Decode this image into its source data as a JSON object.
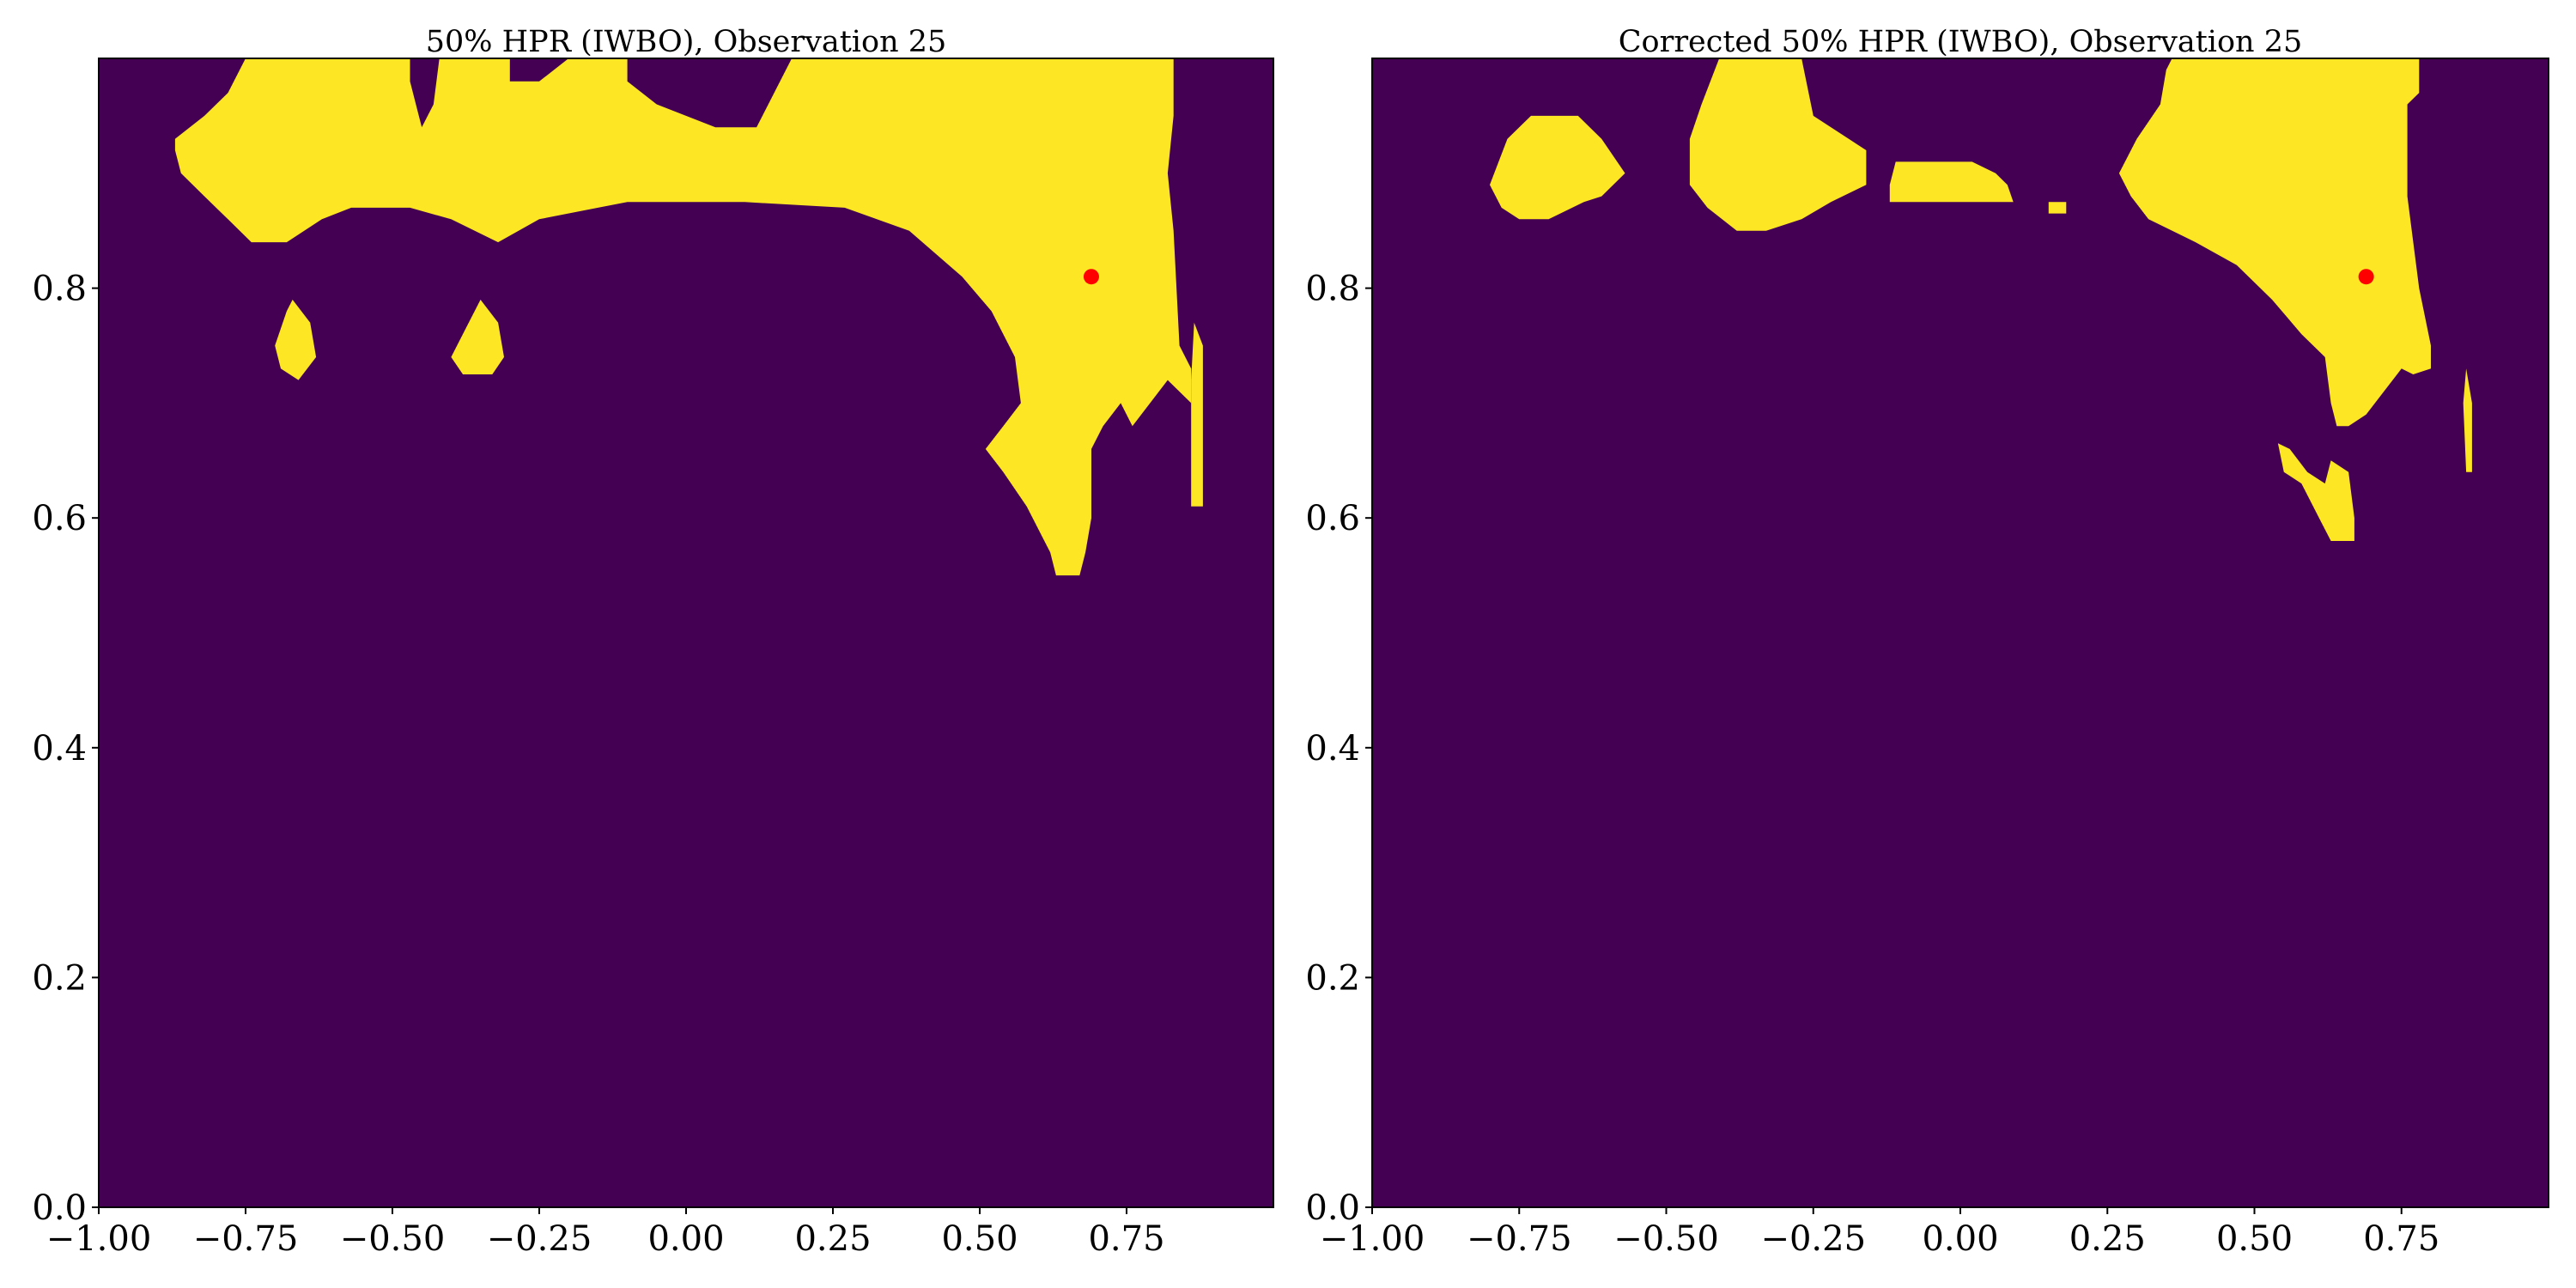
{
  "figure": {
    "background": "#ffffff"
  },
  "chart_data": [
    {
      "type": "heatmap",
      "title": "50% HPR (IWBO), Observation 25",
      "xlim": [
        -1.0,
        1.0
      ],
      "ylim": [
        0.0,
        1.0
      ],
      "xticks": [
        -1.0,
        -0.75,
        -0.5,
        -0.25,
        0.0,
        0.25,
        0.5,
        0.75
      ],
      "xtick_labels": [
        "−1.00",
        "−0.75",
        "−0.50",
        "−0.25",
        "0.00",
        "0.25",
        "0.50",
        "0.75"
      ],
      "yticks": [
        0.0,
        0.2,
        0.4,
        0.6,
        0.8
      ],
      "ytick_labels": [
        "0.0",
        "0.2",
        "0.4",
        "0.6",
        "0.8"
      ],
      "grid": false,
      "colors": {
        "outside": "#440154",
        "inside": "#fde725",
        "marker": "#ff0000"
      },
      "regions": [
        {
          "polygon": [
            [
              -0.87,
              0.93
            ],
            [
              -0.82,
              0.95
            ],
            [
              -0.78,
              0.97
            ],
            [
              -0.75,
              1.0
            ],
            [
              -0.47,
              1.0
            ],
            [
              -0.47,
              0.98
            ],
            [
              -0.45,
              0.94
            ],
            [
              -0.43,
              0.96
            ],
            [
              -0.42,
              1.0
            ],
            [
              -0.3,
              1.0
            ],
            [
              -0.3,
              0.98
            ],
            [
              -0.25,
              0.98
            ],
            [
              -0.2,
              1.0
            ],
            [
              -0.1,
              1.0
            ],
            [
              -0.1,
              0.98
            ],
            [
              -0.05,
              0.96
            ],
            [
              0.05,
              0.94
            ],
            [
              0.12,
              0.94
            ],
            [
              0.15,
              0.97
            ],
            [
              0.18,
              1.0
            ],
            [
              0.83,
              1.0
            ],
            [
              0.83,
              0.95
            ],
            [
              0.82,
              0.9
            ],
            [
              0.83,
              0.85
            ],
            [
              0.84,
              0.75
            ],
            [
              0.86,
              0.73
            ],
            [
              0.86,
              0.7
            ],
            [
              0.82,
              0.72
            ],
            [
              0.79,
              0.7
            ],
            [
              0.76,
              0.68
            ],
            [
              0.74,
              0.7
            ],
            [
              0.71,
              0.68
            ],
            [
              0.69,
              0.66
            ],
            [
              0.69,
              0.6
            ],
            [
              0.68,
              0.57
            ],
            [
              0.67,
              0.55
            ],
            [
              0.63,
              0.55
            ],
            [
              0.62,
              0.57
            ],
            [
              0.58,
              0.61
            ],
            [
              0.54,
              0.64
            ],
            [
              0.51,
              0.66
            ],
            [
              0.54,
              0.68
            ],
            [
              0.57,
              0.7
            ],
            [
              0.56,
              0.74
            ],
            [
              0.52,
              0.78
            ],
            [
              0.47,
              0.81
            ],
            [
              0.38,
              0.85
            ],
            [
              0.27,
              0.87
            ],
            [
              0.1,
              0.875
            ],
            [
              -0.1,
              0.875
            ],
            [
              -0.15,
              0.87
            ],
            [
              -0.25,
              0.86
            ],
            [
              -0.32,
              0.84
            ],
            [
              -0.4,
              0.86
            ],
            [
              -0.47,
              0.87
            ],
            [
              -0.57,
              0.87
            ],
            [
              -0.62,
              0.86
            ],
            [
              -0.68,
              0.84
            ],
            [
              -0.74,
              0.84
            ],
            [
              -0.78,
              0.86
            ],
            [
              -0.82,
              0.88
            ],
            [
              -0.86,
              0.9
            ],
            [
              -0.87,
              0.92
            ]
          ]
        },
        {
          "polygon": [
            [
              -0.67,
              0.79
            ],
            [
              -0.64,
              0.77
            ],
            [
              -0.63,
              0.74
            ],
            [
              -0.66,
              0.72
            ],
            [
              -0.69,
              0.73
            ],
            [
              -0.7,
              0.75
            ],
            [
              -0.68,
              0.78
            ]
          ]
        },
        {
          "polygon": [
            [
              -0.35,
              0.79
            ],
            [
              -0.32,
              0.77
            ],
            [
              -0.31,
              0.74
            ],
            [
              -0.33,
              0.725
            ],
            [
              -0.38,
              0.725
            ],
            [
              -0.4,
              0.74
            ],
            [
              -0.37,
              0.77
            ]
          ]
        },
        {
          "polygon": [
            [
              0.865,
              0.77
            ],
            [
              0.88,
              0.75
            ],
            [
              0.88,
              0.61
            ],
            [
              0.86,
              0.61
            ],
            [
              0.86,
              0.72
            ]
          ]
        }
      ],
      "marker": {
        "x": 0.69,
        "y": 0.81
      }
    },
    {
      "type": "heatmap",
      "title": "Corrected 50% HPR (IWBO), Observation 25",
      "xlim": [
        -1.0,
        1.0
      ],
      "ylim": [
        0.0,
        1.0
      ],
      "xticks": [
        -1.0,
        -0.75,
        -0.5,
        -0.25,
        0.0,
        0.25,
        0.5,
        0.75
      ],
      "xtick_labels": [
        "−1.00",
        "−0.75",
        "−0.50",
        "−0.25",
        "0.00",
        "0.25",
        "0.50",
        "0.75"
      ],
      "yticks": [
        0.0,
        0.2,
        0.4,
        0.6,
        0.8
      ],
      "ytick_labels": [
        "0.0",
        "0.2",
        "0.4",
        "0.6",
        "0.8"
      ],
      "grid": false,
      "colors": {
        "outside": "#440154",
        "inside": "#fde725",
        "marker": "#ff0000"
      },
      "regions": [
        {
          "polygon": [
            [
              -0.73,
              0.95
            ],
            [
              -0.65,
              0.95
            ],
            [
              -0.61,
              0.93
            ],
            [
              -0.57,
              0.9
            ],
            [
              -0.61,
              0.88
            ],
            [
              -0.64,
              0.875
            ],
            [
              -0.7,
              0.86
            ],
            [
              -0.75,
              0.86
            ],
            [
              -0.78,
              0.87
            ],
            [
              -0.8,
              0.89
            ],
            [
              -0.77,
              0.93
            ]
          ]
        },
        {
          "polygon": [
            [
              -0.41,
              1.0
            ],
            [
              -0.27,
              1.0
            ],
            [
              -0.25,
              0.95
            ],
            [
              -0.16,
              0.92
            ],
            [
              -0.16,
              0.89
            ],
            [
              -0.22,
              0.875
            ],
            [
              -0.27,
              0.86
            ],
            [
              -0.33,
              0.85
            ],
            [
              -0.38,
              0.85
            ],
            [
              -0.43,
              0.87
            ],
            [
              -0.46,
              0.89
            ],
            [
              -0.46,
              0.93
            ],
            [
              -0.44,
              0.96
            ]
          ]
        },
        {
          "polygon": [
            [
              -0.11,
              0.91
            ],
            [
              0.02,
              0.91
            ],
            [
              0.06,
              0.9
            ],
            [
              0.08,
              0.89
            ],
            [
              0.09,
              0.875
            ],
            [
              -0.12,
              0.875
            ],
            [
              -0.12,
              0.89
            ]
          ]
        },
        {
          "polygon": [
            [
              0.15,
              0.875
            ],
            [
              0.18,
              0.875
            ],
            [
              0.18,
              0.865
            ],
            [
              0.15,
              0.865
            ]
          ]
        },
        {
          "polygon": [
            [
              0.27,
              0.9
            ],
            [
              0.3,
              0.93
            ],
            [
              0.34,
              0.96
            ],
            [
              0.35,
              0.99
            ],
            [
              0.36,
              1.0
            ],
            [
              0.78,
              1.0
            ],
            [
              0.78,
              0.97
            ],
            [
              0.76,
              0.96
            ],
            [
              0.76,
              0.88
            ],
            [
              0.78,
              0.8
            ],
            [
              0.8,
              0.75
            ],
            [
              0.8,
              0.73
            ],
            [
              0.77,
              0.725
            ],
            [
              0.75,
              0.73
            ],
            [
              0.72,
              0.71
            ],
            [
              0.69,
              0.69
            ],
            [
              0.66,
              0.68
            ],
            [
              0.64,
              0.68
            ],
            [
              0.63,
              0.7
            ],
            [
              0.62,
              0.74
            ],
            [
              0.58,
              0.76
            ],
            [
              0.53,
              0.79
            ],
            [
              0.47,
              0.82
            ],
            [
              0.4,
              0.84
            ],
            [
              0.32,
              0.86
            ],
            [
              0.29,
              0.88
            ]
          ]
        },
        {
          "polygon": [
            [
              0.86,
              0.73
            ],
            [
              0.87,
              0.7
            ],
            [
              0.87,
              0.64
            ],
            [
              0.86,
              0.64
            ],
            [
              0.855,
              0.7
            ]
          ]
        },
        {
          "polygon": [
            [
              0.54,
              0.665
            ],
            [
              0.56,
              0.66
            ],
            [
              0.59,
              0.64
            ],
            [
              0.62,
              0.63
            ],
            [
              0.63,
              0.65
            ],
            [
              0.66,
              0.64
            ],
            [
              0.67,
              0.6
            ],
            [
              0.67,
              0.58
            ],
            [
              0.63,
              0.58
            ],
            [
              0.61,
              0.6
            ],
            [
              0.58,
              0.63
            ],
            [
              0.55,
              0.64
            ]
          ]
        }
      ],
      "marker": {
        "x": 0.69,
        "y": 0.81
      }
    }
  ]
}
